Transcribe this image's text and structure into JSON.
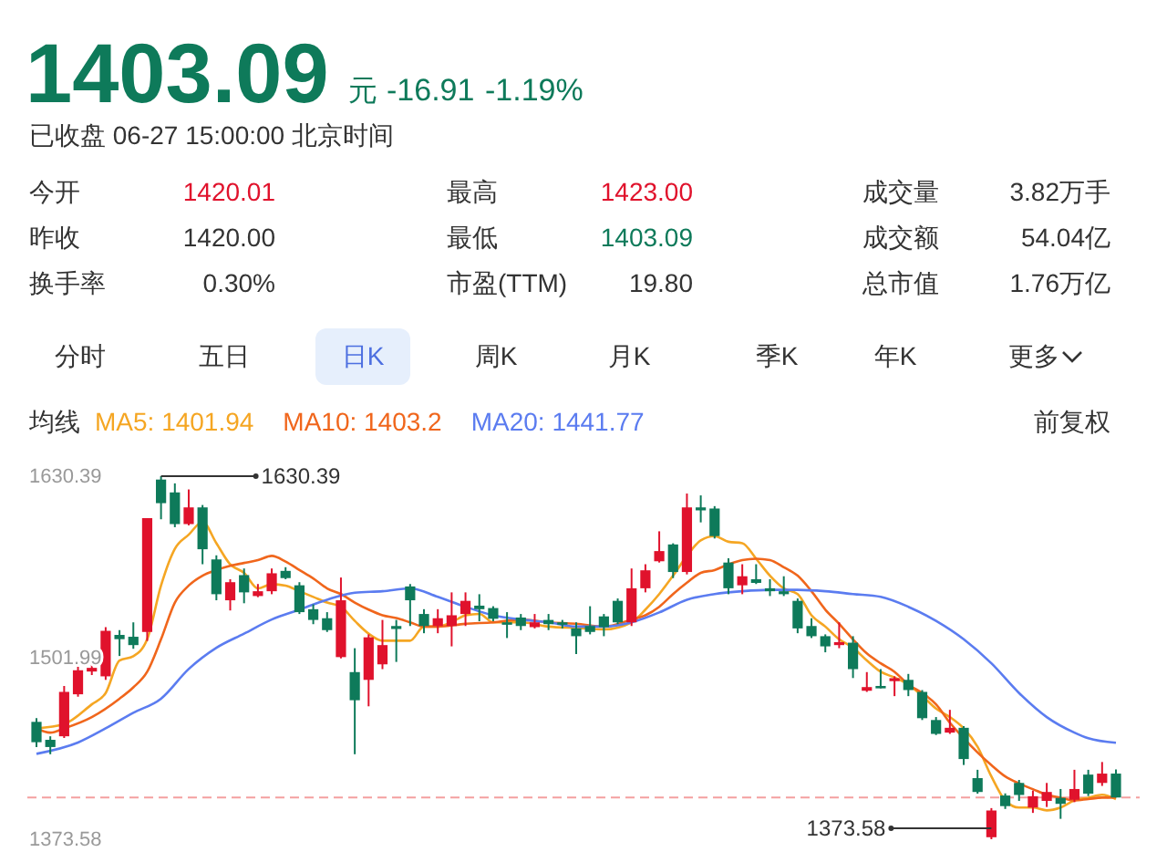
{
  "chart_data": {
    "type": "candlestick",
    "title": "1403.09",
    "subtitle": "已收盘 06-27 15:00:00 北京时间",
    "annotations": [
      "元",
      "-16.91",
      "-1.19%",
      "今开",
      "1420.01",
      "最高",
      "1423.00",
      "成交量",
      "3.82万手",
      "昨收",
      "1420.00",
      "最低",
      "1403.09",
      "成交额",
      "54.04亿",
      "换手率",
      "0.30%",
      "市盈(TTM)",
      "19.80",
      "总市值",
      "1.76万亿",
      "分时",
      "五日",
      "日K",
      "周K",
      "月K",
      "季K",
      "年K",
      "更多",
      "均线",
      "前复权",
      "1630.39",
      "1373.58"
    ],
    "categories": [
      null,
      null,
      null,
      null,
      null,
      null,
      null,
      null,
      null,
      null,
      null,
      null,
      null,
      null,
      null,
      null,
      null,
      null,
      null,
      null,
      null,
      null,
      null,
      null,
      null,
      null,
      null,
      null,
      null,
      null,
      null,
      null,
      null,
      null,
      null,
      null,
      null,
      null,
      null,
      null,
      null,
      null,
      null,
      null,
      null,
      null,
      null,
      null,
      null,
      null,
      null,
      null,
      null,
      null,
      null,
      null,
      null,
      null,
      null,
      null,
      null,
      null,
      null,
      null,
      null,
      null,
      null,
      null,
      null,
      null,
      null,
      null,
      null,
      null,
      null,
      null,
      null,
      null,
      null
    ],
    "ohlc": [
      [
        1456.6,
        1459.2,
        1438.8,
        1442.2
      ],
      [
        1443.9,
        1446.4,
        1433.7,
        1438.8
      ],
      [
        1446.4,
        1482.0,
        1445.2,
        1477.8
      ],
      [
        1476.1,
        1495.6,
        1474.4,
        1493.1
      ],
      [
        1492.2,
        1497.3,
        1489.7,
        1494.8
      ],
      [
        1488.8,
        1523.6,
        1486.3,
        1521.0
      ],
      [
        1518.1,
        1521.5,
        1503.2,
        1515.1
      ],
      [
        1516.8,
        1527.0,
        1508.3,
        1510.9
      ],
      [
        1520.2,
        1600.7,
        1513.8,
        1600.7
      ],
      [
        1628.0,
        1630.39,
        1599.9,
        1611.3
      ],
      [
        1618.9,
        1625.3,
        1594.3,
        1596.5
      ],
      [
        1596.5,
        1621.0,
        1595.6,
        1608.3
      ],
      [
        1608.3,
        1610.0,
        1568.1,
        1578.7
      ],
      [
        1571.5,
        1574.4,
        1542.6,
        1546.9
      ],
      [
        1542.6,
        1557.5,
        1535.4,
        1555.4
      ],
      [
        1560.4,
        1565.1,
        1540.5,
        1548.2
      ],
      [
        1545.6,
        1554.1,
        1544.8,
        1549.0
      ],
      [
        1549.0,
        1565.1,
        1546.9,
        1561.7
      ],
      [
        1563.4,
        1566.0,
        1557.5,
        1558.3
      ],
      [
        1553.2,
        1555.4,
        1532.9,
        1534.2
      ],
      [
        1536.3,
        1539.7,
        1525.7,
        1528.7
      ],
      [
        1529.9,
        1534.2,
        1520.2,
        1521.5
      ],
      [
        1502.4,
        1558.7,
        1501.5,
        1542.6
      ],
      [
        1491.8,
        1508.7,
        1433.7,
        1471.9
      ],
      [
        1486.3,
        1518.5,
        1467.6,
        1516.4
      ],
      [
        1497.3,
        1528.7,
        1493.9,
        1510.9
      ],
      [
        1524.4,
        1528.7,
        1499.0,
        1522.3
      ],
      [
        1552.4,
        1554.1,
        1524.4,
        1542.6
      ],
      [
        1532.9,
        1536.3,
        1519.3,
        1524.4
      ],
      [
        1524.4,
        1536.3,
        1519.3,
        1529.9
      ],
      [
        1524.4,
        1548.2,
        1510.0,
        1532.0
      ],
      [
        1532.9,
        1548.2,
        1524.4,
        1542.2
      ],
      [
        1538.8,
        1546.9,
        1527.8,
        1536.3
      ],
      [
        1537.1,
        1538.4,
        1527.8,
        1529.5
      ],
      [
        1527.0,
        1534.2,
        1515.9,
        1525.3
      ],
      [
        1530.4,
        1532.9,
        1521.5,
        1524.4
      ],
      [
        1523.6,
        1532.9,
        1522.7,
        1527.0
      ],
      [
        1528.7,
        1532.9,
        1521.5,
        1525.7
      ],
      [
        1527.0,
        1528.7,
        1522.7,
        1525.3
      ],
      [
        1522.7,
        1527.0,
        1504.5,
        1517.2
      ],
      [
        1524.4,
        1538.4,
        1518.5,
        1520.2
      ],
      [
        1531.2,
        1532.9,
        1517.2,
        1523.6
      ],
      [
        1542.2,
        1543.9,
        1525.7,
        1527.0
      ],
      [
        1527.0,
        1565.1,
        1524.4,
        1551.1
      ],
      [
        1551.1,
        1568.1,
        1548.2,
        1563.8
      ],
      [
        1570.2,
        1591.4,
        1569.3,
        1577.4
      ],
      [
        1582.1,
        1582.9,
        1558.3,
        1562.6
      ],
      [
        1562.6,
        1618.1,
        1560.9,
        1608.3
      ],
      [
        1608.3,
        1616.8,
        1597.7,
        1606.2
      ],
      [
        1607.5,
        1609.2,
        1586.3,
        1588.0
      ],
      [
        1569.3,
        1572.3,
        1546.9,
        1551.1
      ],
      [
        1553.2,
        1568.1,
        1546.9,
        1559.6
      ],
      [
        1557.5,
        1568.1,
        1554.1,
        1554.9
      ],
      [
        1551.1,
        1557.5,
        1545.6,
        1549.0
      ],
      [
        1549.0,
        1559.6,
        1545.6,
        1546.9
      ],
      [
        1542.2,
        1543.9,
        1519.3,
        1522.7
      ],
      [
        1524.4,
        1529.9,
        1515.9,
        1517.2
      ],
      [
        1517.2,
        1518.5,
        1505.8,
        1510.0
      ],
      [
        1510.9,
        1527.0,
        1508.7,
        1513.0
      ],
      [
        1512.6,
        1517.2,
        1487.6,
        1493.9
      ],
      [
        1478.6,
        1491.8,
        1477.8,
        1481.2
      ],
      [
        1482.0,
        1493.9,
        1480.3,
        1480.3
      ],
      [
        1485.4,
        1488.8,
        1474.8,
        1487.5
      ],
      [
        1486.3,
        1490.5,
        1474.8,
        1479.1
      ],
      [
        1477.8,
        1479.1,
        1457.9,
        1459.2
      ],
      [
        1457.9,
        1460.0,
        1447.3,
        1448.1
      ],
      [
        1449.0,
        1465.1,
        1448.1,
        1452.4
      ],
      [
        1452.4,
        1453.6,
        1426.1,
        1430.3
      ],
      [
        1416.8,
        1422.7,
        1405.8,
        1407.0
      ],
      [
        1375.0,
        1395.6,
        1373.58,
        1393.9
      ],
      [
        1404.5,
        1406.0,
        1395.0,
        1397.0
      ],
      [
        1413.4,
        1415.5,
        1400.7,
        1404.9
      ],
      [
        1396.0,
        1408.0,
        1392.2,
        1404.0
      ],
      [
        1400.7,
        1413.4,
        1396.4,
        1407.0
      ],
      [
        1402.8,
        1409.1,
        1388.0,
        1398.6
      ],
      [
        1401.5,
        1422.7,
        1399.8,
        1409.1
      ],
      [
        1419.3,
        1422.7,
        1404.1,
        1405.8
      ],
      [
        1413.4,
        1428.2,
        1411.3,
        1420.0
      ],
      [
        1420.01,
        1423.0,
        1403.09,
        1403.09
      ]
    ],
    "series": [
      {
        "name": "MA5: 1401.94",
        "type": "line",
        "color": "#f5a623",
        "values": [
          1452,
          null,
          1455,
          null,
          1469,
          1477,
          1500,
          1503,
          1515,
          1553,
          1579,
          1589,
          1598,
          1583,
          1568,
          1562,
          1551,
          1554,
          1553,
          1549,
          1545,
          1541,
          1538,
          1528,
          1519,
          1514,
          1514,
          1514,
          1524,
          1524,
          1527,
          1532,
          1533,
          1527,
          null,
          1527,
          null,
          1524,
          null,
          1523,
          null,
          1522,
          null,
          1527,
          1536,
          1547,
          1560,
          1574,
          1585,
          1588,
          1584,
          1583,
          1572,
          1560,
          1551,
          1547,
          1532,
          1524,
          1515,
          1509,
          1500,
          1492,
          1488,
          1483,
          1475,
          1466,
          1460,
          1452,
          1439,
          1418,
          1401,
          1396,
          1396,
          1394,
          1396,
          1401,
          1403,
          1405,
          1401.94
        ]
      },
      {
        "name": "MA10: 1403.2",
        "type": "line",
        "color": "#f0661c",
        "values": [
          1452,
          1449,
          1452,
          null,
          1460,
          null,
          1473,
          1481,
          1492,
          1515,
          1541,
          1553,
          1560,
          1564,
          1567,
          1569,
          1571,
          1574,
          1570,
          1564,
          1558,
          1551,
          1547,
          1541,
          1536,
          1532,
          1530,
          1527,
          1524,
          1524,
          null,
          1526,
          null,
          1527,
          null,
          1529,
          null,
          1527,
          null,
          1526,
          null,
          1524,
          null,
          1529,
          1532,
          1538,
          1547,
          1555,
          1562,
          1564,
          1568,
          1571,
          1572,
          1571,
          1566,
          1560,
          1549,
          1536,
          1526,
          1515,
          1505,
          1498,
          1492,
          1483,
          1477,
          1469,
          1456,
          1445,
          1435,
          1426,
          1418,
          1413,
          1409,
          1405,
          1403,
          1401,
          1402,
          1403,
          1403.2
        ]
      },
      {
        "name": "MA20: 1441.77",
        "type": "line",
        "color": "#5b7cf0",
        "values": [
          1434,
          null,
          null,
          1442,
          null,
          1452,
          null,
          1463,
          null,
          1473,
          null,
          1494,
          null,
          1509,
          null,
          1519,
          null,
          1529,
          null,
          1536,
          null,
          1543,
          null,
          1548,
          null,
          1549,
          null,
          1551,
          null,
          1545,
          null,
          1538,
          null,
          1532,
          null,
          1529,
          null,
          1527,
          null,
          1524,
          null,
          1524,
          null,
          1527,
          null,
          1534,
          null,
          1543,
          null,
          1547,
          null,
          1549,
          null,
          1550,
          null,
          1550,
          null,
          1549,
          null,
          1547,
          null,
          1545,
          null,
          1538,
          null,
          1528,
          null,
          1515,
          null,
          1498,
          null,
          1477,
          null,
          1460,
          null,
          1449,
          1445,
          null,
          1441.77
        ]
      }
    ],
    "ylim": [
      1373.58,
      1630.39
    ],
    "yticks": [
      1630.39,
      1501.99,
      1373.58
    ],
    "tick_labels": "y",
    "legend": "top",
    "ref_lines": [
      {
        "axis": "y",
        "value": 1403.09,
        "color": "#f4a0a0",
        "line_style": "dashed"
      }
    ]
  }
}
